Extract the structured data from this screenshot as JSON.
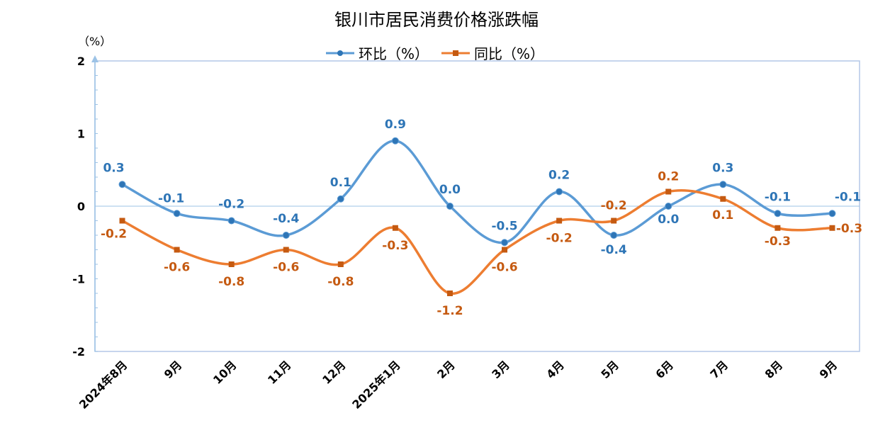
{
  "chart_data": {
    "type": "line",
    "title": "银川市居民消费价格涨跌幅",
    "ylabel": "（%）",
    "xlabel": "",
    "ylim": [
      -2,
      2
    ],
    "yticks": [
      "2",
      "1",
      "0",
      "-1",
      "-2"
    ],
    "ytick_values": [
      2,
      1,
      0,
      -1,
      -2
    ],
    "categories": [
      "2024年8月",
      "9月",
      "10月",
      "11月",
      "12月",
      "2025年1月",
      "2月",
      "3月",
      "4月",
      "5月",
      "6月",
      "7月",
      "8月",
      "9月"
    ],
    "legend_position": "top-center",
    "series": [
      {
        "name": "环比（%）",
        "color": "#5b9bd5",
        "label_color": "#2e75b6",
        "marker": "circle",
        "values": [
          0.3,
          -0.1,
          -0.2,
          -0.4,
          0.1,
          0.9,
          0.0,
          -0.5,
          0.2,
          -0.4,
          0.0,
          0.3,
          -0.1,
          -0.1
        ],
        "labels": [
          "0.3",
          "-0.1",
          "-0.2",
          "-0.4",
          "0.1",
          "0.9",
          "0.0",
          "-0.5",
          "0.2",
          "-0.4",
          "0.0",
          "0.3",
          "-0.1",
          "-0.1"
        ]
      },
      {
        "name": "同比（%）",
        "color": "#ed7d31",
        "label_color": "#c55a11",
        "marker": "square",
        "values": [
          -0.2,
          -0.6,
          -0.8,
          -0.6,
          -0.8,
          -0.3,
          -1.2,
          -0.6,
          -0.2,
          -0.2,
          0.2,
          0.1,
          -0.3,
          -0.3
        ],
        "labels": [
          "-0.2",
          "-0.6",
          "-0.8",
          "-0.6",
          "-0.8",
          "-0.3",
          "-1.2",
          "-0.6",
          "-0.2",
          "-0.2",
          "0.2",
          "0.1",
          "-0.3",
          "-0.3"
        ]
      }
    ]
  }
}
